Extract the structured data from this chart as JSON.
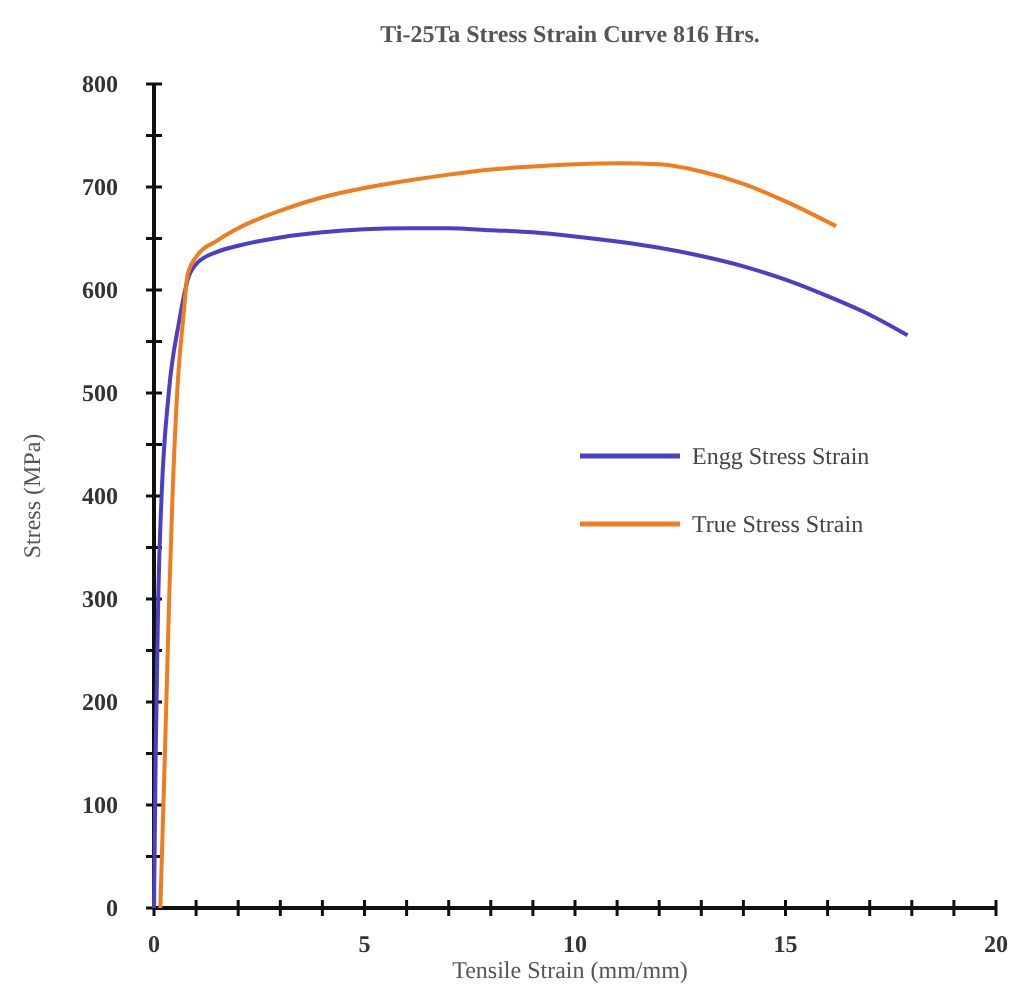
{
  "chart_data": {
    "type": "line",
    "title": "Ti-25Ta Stress Strain Curve 816 Hrs.",
    "xlabel": "Tensile Strain (mm/mm)",
    "ylabel": "Stress (MPa)",
    "xlim": [
      0,
      20
    ],
    "ylim": [
      0,
      800
    ],
    "xticks": [
      0,
      {
        "value": 1,
        "label": null
      },
      {
        "value": 2,
        "label": null
      },
      {
        "value": 3,
        "label": null
      },
      {
        "value": 4,
        "label": null
      },
      5,
      {
        "value": 6,
        "label": null
      },
      {
        "value": 7,
        "label": null
      },
      {
        "value": 8,
        "label": null
      },
      {
        "value": 9,
        "label": null
      },
      10,
      {
        "value": 11,
        "label": null
      },
      {
        "value": 12,
        "label": null
      },
      {
        "value": 13,
        "label": null
      },
      {
        "value": 14,
        "label": null
      },
      15,
      {
        "value": 16,
        "label": null
      },
      {
        "value": 17,
        "label": null
      },
      {
        "value": 18,
        "label": null
      },
      {
        "value": 19,
        "label": null
      },
      20
    ],
    "yticks": [
      0,
      {
        "value": 50,
        "label": null
      },
      100,
      {
        "value": 150,
        "label": null
      },
      200,
      {
        "value": 250,
        "label": null
      },
      300,
      {
        "value": 350,
        "label": null
      },
      400,
      {
        "value": 450,
        "label": null
      },
      500,
      {
        "value": 550,
        "label": null
      },
      600,
      {
        "value": 650,
        "label": null
      },
      700,
      {
        "value": 750,
        "label": null
      },
      800
    ],
    "grid": false,
    "legend": "right",
    "marker": "none",
    "line_style": "solid",
    "series": [
      {
        "name": "Engg Stress Strain",
        "color": "#4b3fc7",
        "x": [
          0,
          0.04,
          0.1,
          0.18,
          0.35,
          0.6,
          0.8,
          1,
          1.5,
          2,
          3,
          4,
          5,
          6,
          7,
          8,
          9,
          10,
          11,
          12,
          13,
          14,
          15,
          16,
          17,
          17.9
        ],
        "values": [
          0,
          150,
          300,
          400,
          500,
          570,
          610,
          625,
          637,
          643,
          651,
          656,
          659,
          660,
          660,
          658,
          656,
          652,
          647,
          641,
          633,
          623,
          610,
          594,
          576,
          556
        ]
      },
      {
        "name": "True Stress Strain",
        "color": "#f07c1e",
        "x": [
          0.15,
          0.26,
          0.36,
          0.44,
          0.55,
          0.7,
          0.8,
          1,
          1.5,
          2,
          3,
          4,
          5,
          6,
          7,
          8,
          9,
          10,
          11,
          12,
          13,
          14,
          15,
          16.2
        ],
        "values": [
          0,
          150,
          300,
          400,
          500,
          575,
          615,
          632,
          648,
          660,
          677,
          690,
          699,
          706,
          712,
          717,
          720,
          722,
          723,
          722,
          715,
          703,
          686,
          662
        ]
      }
    ]
  }
}
